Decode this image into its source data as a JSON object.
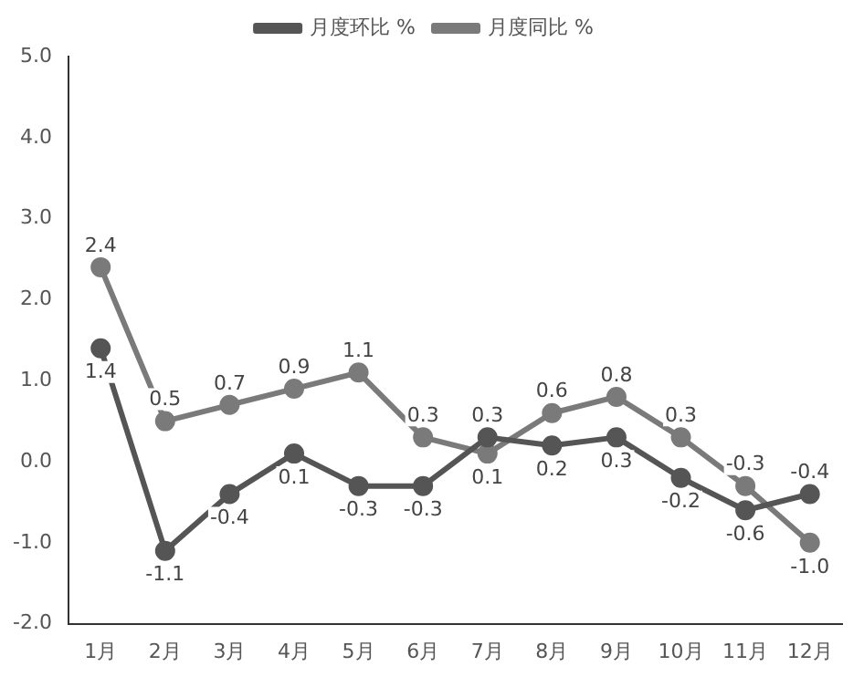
{
  "chart_data": {
    "type": "line",
    "categories": [
      "1月",
      "2月",
      "3月",
      "4月",
      "5月",
      "6月",
      "7月",
      "8月",
      "9月",
      "10月",
      "11月",
      "12月"
    ],
    "series": [
      {
        "name": "月度环比 %",
        "color": "#555555",
        "values": [
          1.4,
          -1.1,
          -0.4,
          0.1,
          -0.3,
          -0.3,
          0.3,
          0.2,
          0.3,
          -0.2,
          -0.6,
          -0.4
        ],
        "value_labels": [
          "1.4",
          "-1.1",
          "-0.4",
          "0.1",
          "-0.3",
          "-0.3",
          "0.3",
          "0.2",
          "0.3",
          "-0.2",
          "-0.6",
          "-0.4"
        ]
      },
      {
        "name": "月度同比 %",
        "color": "#7a7a7a",
        "values": [
          2.4,
          0.5,
          0.7,
          0.9,
          1.1,
          0.3,
          0.1,
          0.6,
          0.8,
          0.3,
          -0.3,
          -1.0
        ],
        "value_labels": [
          "2.4",
          "0.5",
          "0.7",
          "0.9",
          "1.1",
          "0.3",
          "0.1",
          "0.6",
          "0.8",
          "0.3",
          "-0.3",
          "-1.0"
        ]
      }
    ],
    "ylim": [
      -2.0,
      5.0
    ],
    "yticks": [
      {
        "value": -2,
        "label": "-2.0"
      },
      {
        "value": -1,
        "label": "-1.0"
      },
      {
        "value": 0,
        "label": "0.0"
      },
      {
        "value": 1,
        "label": "1.0"
      },
      {
        "value": 2,
        "label": "2.0"
      },
      {
        "value": 3,
        "label": "3.0"
      },
      {
        "value": 4,
        "label": "4.0"
      },
      {
        "value": 5,
        "label": "5.0"
      }
    ],
    "grid": false,
    "legend": "top",
    "marker": "circle",
    "line_style": "solid"
  }
}
